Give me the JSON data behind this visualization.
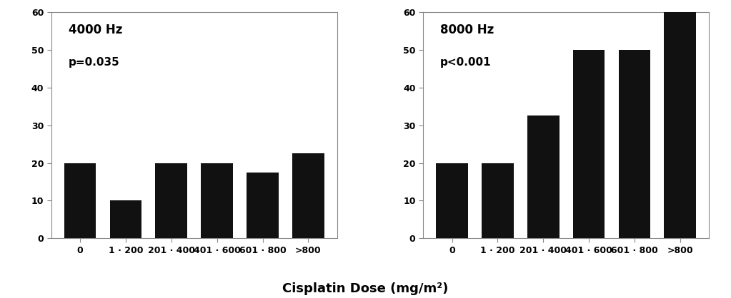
{
  "left": {
    "title": "4000 Hz",
    "pvalue": "p=0.035",
    "categories": [
      "0",
      "1 · 200",
      "201 · 400",
      "401 · 600",
      "601 · 800",
      ">800"
    ],
    "values": [
      20,
      10,
      20,
      20,
      17.5,
      22.5
    ],
    "ylim": [
      0,
      60
    ],
    "yticks": [
      0,
      10,
      20,
      30,
      40,
      50,
      60
    ]
  },
  "right": {
    "title": "8000 Hz",
    "pvalue": "p<0.001",
    "categories": [
      "0",
      "1 · 200",
      "201 · 400",
      "401 · 600",
      "601 · 800",
      ">800"
    ],
    "values": [
      20,
      20,
      32.5,
      50,
      50,
      60
    ],
    "ylim": [
      0,
      60
    ],
    "yticks": [
      0,
      10,
      20,
      30,
      40,
      50,
      60
    ]
  },
  "xlabel": "Cisplatin Dose (mg/m²)",
  "bar_color": "#111111",
  "bar_width": 0.7,
  "background_color": "#ffffff",
  "title_fontsize": 12,
  "pvalue_fontsize": 11,
  "tick_fontsize": 9,
  "xlabel_fontsize": 13
}
